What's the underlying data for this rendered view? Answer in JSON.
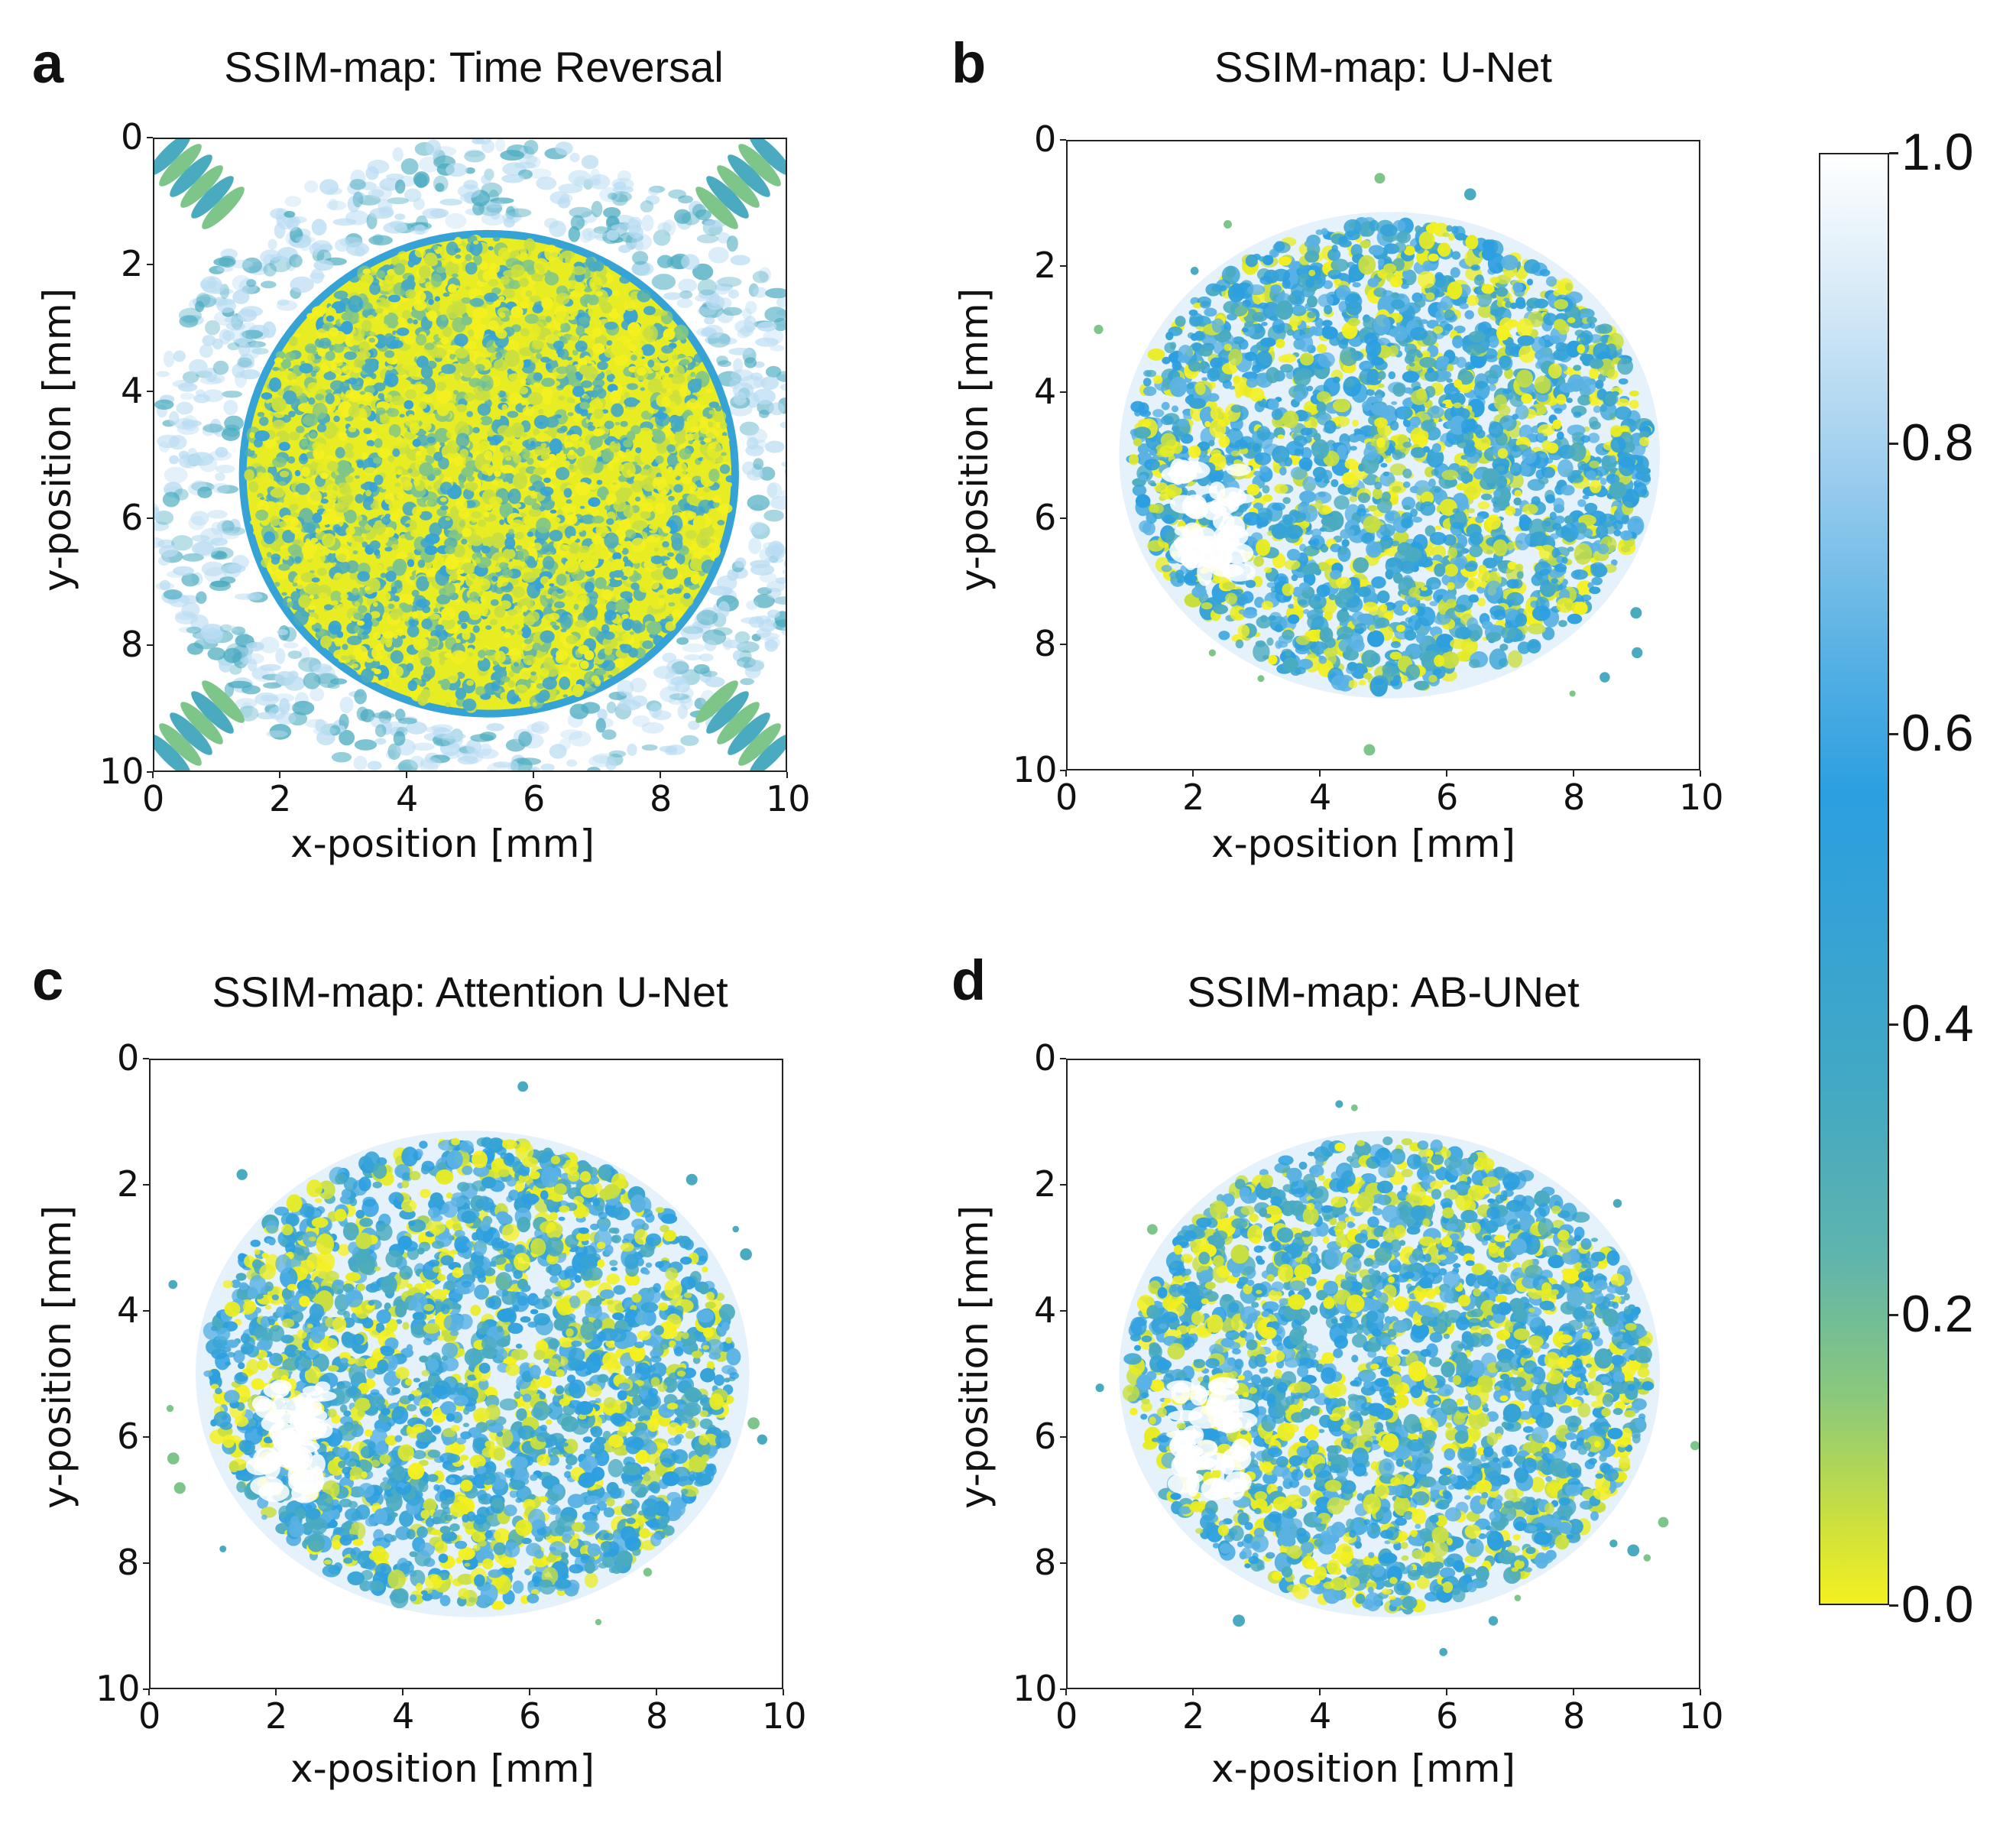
{
  "figure": {
    "panels": [
      {
        "letter": "a",
        "title": "SSIM-map: Time Reversal",
        "xlabel": "x-position [mm]",
        "ylabel": "y-position [mm]",
        "xticks": [
          "0",
          "2",
          "4",
          "6",
          "8",
          "10"
        ],
        "yticks": [
          "0",
          "2",
          "4",
          "6",
          "8",
          "10"
        ]
      },
      {
        "letter": "b",
        "title": "SSIM-map: U-Net",
        "xlabel": "x-position [mm]",
        "ylabel": "y-position [mm]",
        "xticks": [
          "0",
          "2",
          "4",
          "6",
          "8",
          "10"
        ],
        "yticks": [
          "0",
          "2",
          "4",
          "6",
          "8",
          "10"
        ]
      },
      {
        "letter": "c",
        "title": "SSIM-map: Attention U-Net",
        "xlabel": "x-position [mm]",
        "ylabel": "y-position [mm]",
        "xticks": [
          "0",
          "2",
          "4",
          "6",
          "8",
          "10"
        ],
        "yticks": [
          "0",
          "2",
          "4",
          "6",
          "8",
          "10"
        ]
      },
      {
        "letter": "d",
        "title": "SSIM-map: AB-UNet",
        "xlabel": "x-position [mm]",
        "ylabel": "y-position [mm]",
        "xticks": [
          "0",
          "2",
          "4",
          "6",
          "8",
          "10"
        ],
        "yticks": [
          "0",
          "2",
          "4",
          "6",
          "8",
          "10"
        ]
      }
    ],
    "colorbar": {
      "ticks": [
        "0.0",
        "0.2",
        "0.4",
        "0.6",
        "0.8",
        "1.0"
      ]
    }
  },
  "chart_data": [
    {
      "type": "heatmap",
      "title": "SSIM-map: Time Reversal",
      "xlabel": "x-position [mm]",
      "ylabel": "y-position [mm]",
      "xlim": [
        0,
        10
      ],
      "ylim": [
        10,
        0
      ],
      "clim": [
        0.0,
        1.0
      ],
      "colormap": "yellow-green-blue-white",
      "region": {
        "shape": "ellipse",
        "center_mm": [
          5.3,
          5.3
        ],
        "radius_mm": [
          3.9,
          3.8
        ]
      },
      "description": "dense low-SSIM (yellow) region inside ellipse, ring artifacts outside"
    },
    {
      "type": "heatmap",
      "title": "SSIM-map: U-Net",
      "xlabel": "x-position [mm]",
      "ylabel": "y-position [mm]",
      "xlim": [
        0,
        10
      ],
      "ylim": [
        10,
        0
      ],
      "clim": [
        0.0,
        1.0
      ],
      "colormap": "yellow-green-blue-white",
      "region": {
        "shape": "ellipse",
        "center_mm": [
          5.1,
          5.0
        ],
        "radius_mm": [
          4.2,
          3.8
        ]
      }
    },
    {
      "type": "heatmap",
      "title": "SSIM-map: Attention U-Net",
      "xlabel": "x-position [mm]",
      "ylabel": "y-position [mm]",
      "xlim": [
        0,
        10
      ],
      "ylim": [
        10,
        0
      ],
      "clim": [
        0.0,
        1.0
      ],
      "colormap": "yellow-green-blue-white",
      "region": {
        "shape": "ellipse",
        "center_mm": [
          5.1,
          5.0
        ],
        "radius_mm": [
          4.3,
          3.8
        ]
      }
    },
    {
      "type": "heatmap",
      "title": "SSIM-map: AB-UNet",
      "xlabel": "x-position [mm]",
      "ylabel": "y-position [mm]",
      "xlim": [
        0,
        10
      ],
      "ylim": [
        10,
        0
      ],
      "clim": [
        0.0,
        1.0
      ],
      "colormap": "yellow-green-blue-white",
      "region": {
        "shape": "ellipse",
        "center_mm": [
          5.1,
          5.0
        ],
        "radius_mm": [
          4.2,
          3.8
        ]
      }
    }
  ]
}
